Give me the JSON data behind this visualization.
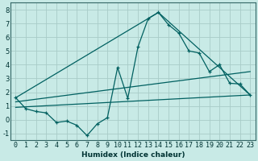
{
  "xlabel": "Humidex (Indice chaleur)",
  "bg_color": "#c8eae6",
  "grid_color": "#a8ccc8",
  "line_color": "#006060",
  "xlim": [
    -0.5,
    23.5
  ],
  "ylim": [
    -1.5,
    8.5
  ],
  "yticks": [
    -1,
    0,
    1,
    2,
    3,
    4,
    5,
    6,
    7,
    8
  ],
  "xticks": [
    0,
    1,
    2,
    3,
    4,
    5,
    6,
    7,
    8,
    9,
    10,
    11,
    12,
    13,
    14,
    15,
    16,
    17,
    18,
    19,
    20,
    21,
    22,
    23
  ],
  "series1_x": [
    0,
    1,
    2,
    3,
    4,
    5,
    6,
    7,
    8,
    9,
    10,
    11,
    12,
    13,
    14,
    15,
    16,
    17,
    18,
    19,
    20,
    21,
    22,
    23
  ],
  "series1_y": [
    1.6,
    0.8,
    0.6,
    0.5,
    -0.2,
    -0.1,
    -0.4,
    -1.15,
    -0.3,
    0.15,
    3.8,
    1.55,
    5.3,
    7.35,
    7.8,
    6.9,
    6.3,
    5.0,
    4.85,
    3.5,
    4.0,
    2.65,
    2.6,
    1.8
  ],
  "series2_x": [
    0,
    14,
    23
  ],
  "series2_y": [
    1.6,
    7.8,
    1.8
  ],
  "series3_x": [
    0,
    23
  ],
  "series3_y": [
    1.3,
    3.5
  ],
  "series4_x": [
    0,
    23
  ],
  "series4_y": [
    0.9,
    1.8
  ]
}
